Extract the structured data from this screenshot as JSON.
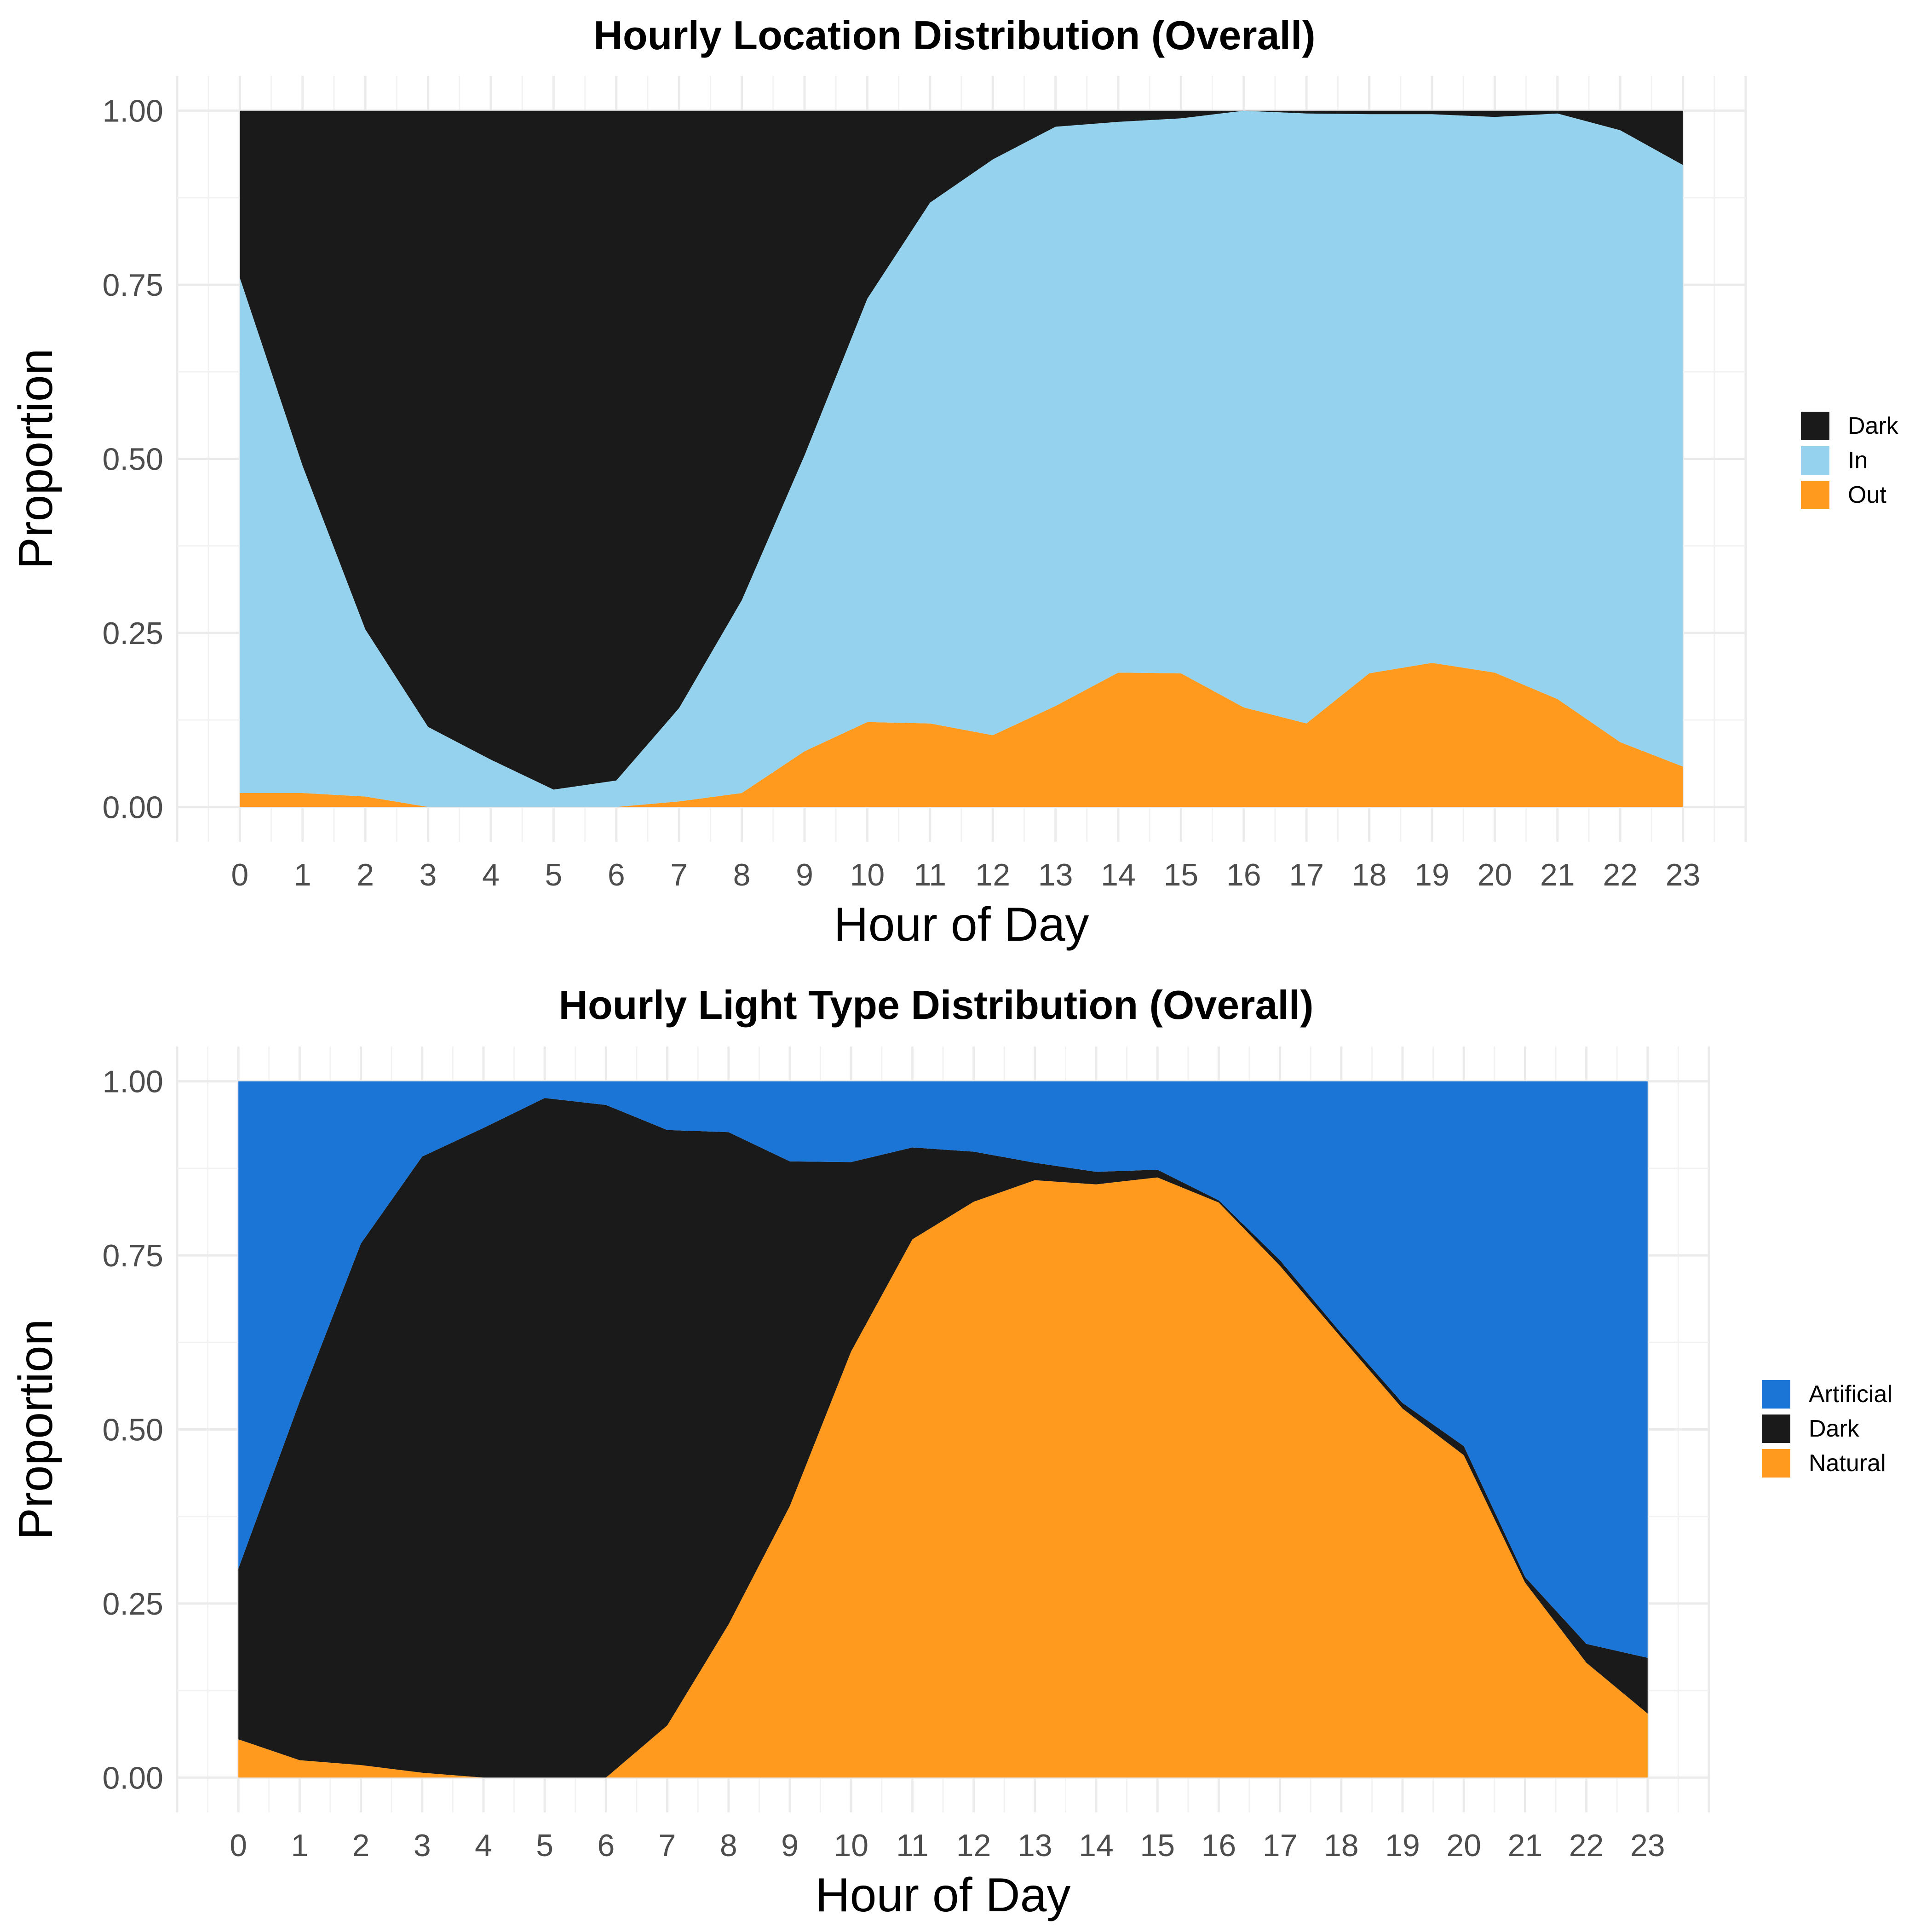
{
  "chart_data": [
    {
      "type": "area",
      "stacked": true,
      "normalized": true,
      "title": "Hourly Location Distribution (Overall)",
      "xlabel": "Hour of Day",
      "ylabel": "Proportion",
      "x": [
        0,
        1,
        2,
        3,
        4,
        5,
        6,
        7,
        8,
        9,
        10,
        11,
        12,
        13,
        14,
        15,
        16,
        17,
        18,
        19,
        20,
        21,
        22,
        23
      ],
      "xlim": [
        -1,
        24
      ],
      "ylim": [
        -0.05,
        1.05
      ],
      "y_ticks": [
        "0.00",
        "0.25",
        "0.50",
        "0.75",
        "1.00"
      ],
      "grid": true,
      "legend_position": "right",
      "series": [
        {
          "name": "Out",
          "color": "#ff9a1f",
          "values": [
            0.02,
            0.02,
            0.015,
            0.0,
            0.0,
            0.0,
            0.0,
            0.008,
            0.02,
            0.08,
            0.122,
            0.12,
            0.103,
            0.145,
            0.193,
            0.192,
            0.143,
            0.12,
            0.192,
            0.207,
            0.193,
            0.155,
            0.093,
            0.058
          ]
        },
        {
          "name": "In",
          "color": "#95d2ed",
          "values": [
            0.74,
            0.47,
            0.24,
            0.115,
            0.068,
            0.025,
            0.038,
            0.134,
            0.277,
            0.425,
            0.608,
            0.748,
            0.827,
            0.832,
            0.791,
            0.797,
            0.857,
            0.876,
            0.803,
            0.788,
            0.798,
            0.841,
            0.879,
            0.864
          ]
        },
        {
          "name": "Dark",
          "color": "#1a1a1a",
          "values": [
            0.24,
            0.51,
            0.745,
            0.885,
            0.932,
            0.975,
            0.962,
            0.858,
            0.703,
            0.495,
            0.27,
            0.132,
            0.07,
            0.023,
            0.016,
            0.011,
            0.0,
            0.004,
            0.005,
            0.005,
            0.009,
            0.004,
            0.028,
            0.078
          ]
        }
      ]
    },
    {
      "type": "area",
      "stacked": true,
      "normalized": true,
      "title": "Hourly Light Type Distribution (Overall)",
      "xlabel": "Hour of Day",
      "ylabel": "Proportion",
      "x": [
        0,
        1,
        2,
        3,
        4,
        5,
        6,
        7,
        8,
        9,
        10,
        11,
        12,
        13,
        14,
        15,
        16,
        17,
        18,
        19,
        20,
        21,
        22,
        23
      ],
      "xlim": [
        -1,
        24
      ],
      "ylim": [
        -0.05,
        1.05
      ],
      "y_ticks": [
        "0.00",
        "0.25",
        "0.50",
        "0.75",
        "1.00"
      ],
      "grid": true,
      "legend_position": "right",
      "series": [
        {
          "name": "Natural",
          "color": "#ff9a1f",
          "values": [
            0.055,
            0.025,
            0.018,
            0.007,
            0.0,
            0.0,
            0.0,
            0.075,
            0.22,
            0.39,
            0.612,
            0.773,
            0.827,
            0.858,
            0.852,
            0.862,
            0.826,
            0.735,
            0.632,
            0.53,
            0.463,
            0.28,
            0.165,
            0.092
          ]
        },
        {
          "name": "Dark",
          "color": "#1a1a1a",
          "values": [
            0.245,
            0.515,
            0.749,
            0.885,
            0.933,
            0.976,
            0.966,
            0.855,
            0.707,
            0.495,
            0.272,
            0.132,
            0.072,
            0.025,
            0.018,
            0.011,
            0.003,
            0.008,
            0.006,
            0.008,
            0.013,
            0.008,
            0.027,
            0.08
          ]
        },
        {
          "name": "Artificial",
          "color": "#1a75d6",
          "values": [
            0.7,
            0.46,
            0.233,
            0.108,
            0.067,
            0.024,
            0.034,
            0.07,
            0.073,
            0.115,
            0.116,
            0.095,
            0.101,
            0.117,
            0.13,
            0.127,
            0.171,
            0.257,
            0.362,
            0.462,
            0.524,
            0.712,
            0.808,
            0.828
          ]
        }
      ]
    }
  ]
}
